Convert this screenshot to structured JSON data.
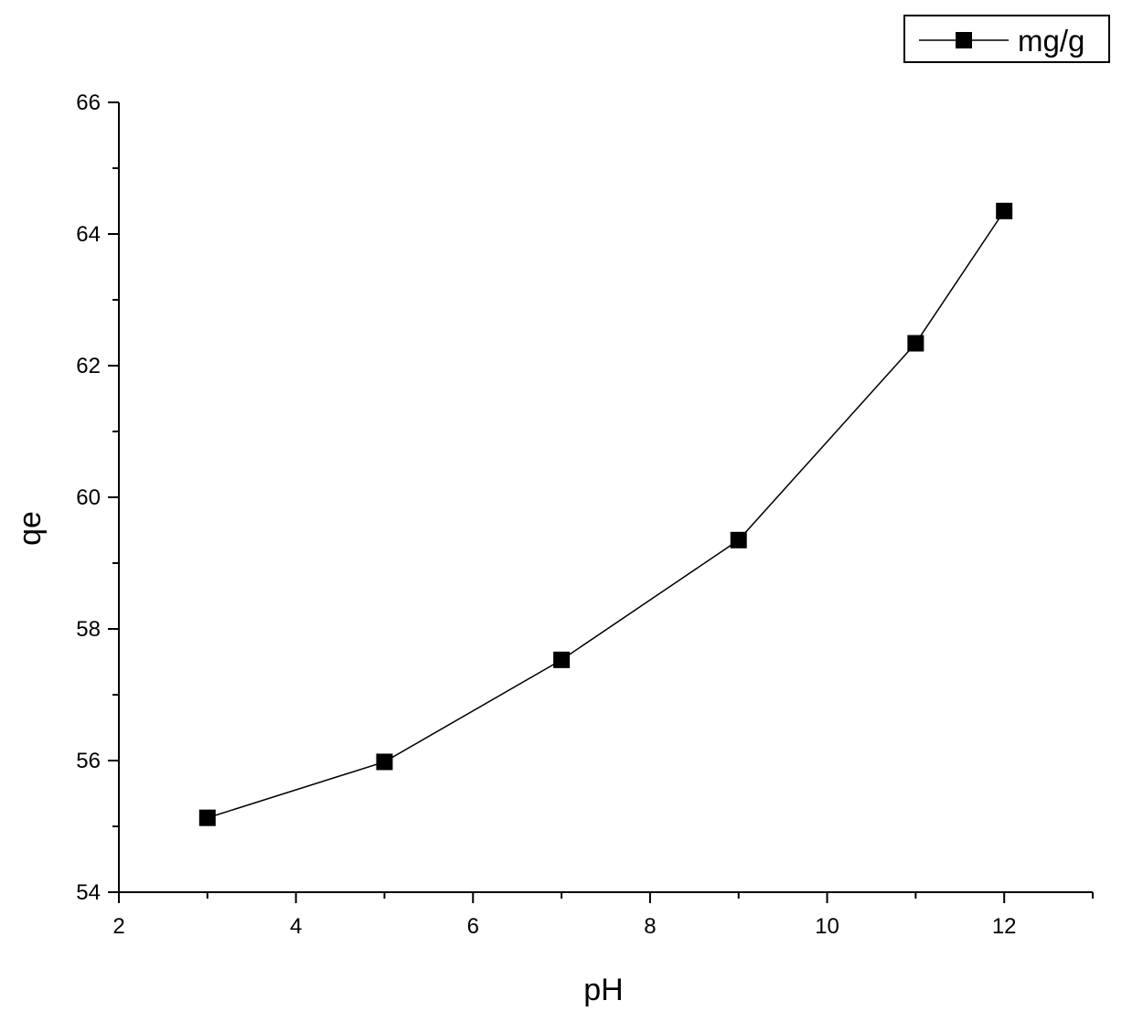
{
  "chart_data": {
    "type": "line",
    "title": "",
    "xlabel": "pH",
    "ylabel": "qe",
    "xlim": [
      2,
      13
    ],
    "ylim": [
      54,
      66
    ],
    "x_ticks": [
      2,
      4,
      6,
      8,
      10,
      12
    ],
    "y_ticks": [
      54,
      56,
      58,
      60,
      62,
      64,
      66
    ],
    "x_minor_step": 1,
    "y_minor_step": 1,
    "grid": false,
    "legend": {
      "placement": "top-right",
      "entries": [
        "mg/g"
      ]
    },
    "series": [
      {
        "name": "mg/g",
        "marker": "square",
        "color": "#000000",
        "x": [
          3,
          5,
          7,
          9,
          11,
          12
        ],
        "y": [
          55.13,
          55.98,
          57.53,
          59.35,
          62.34,
          64.35
        ]
      }
    ]
  }
}
